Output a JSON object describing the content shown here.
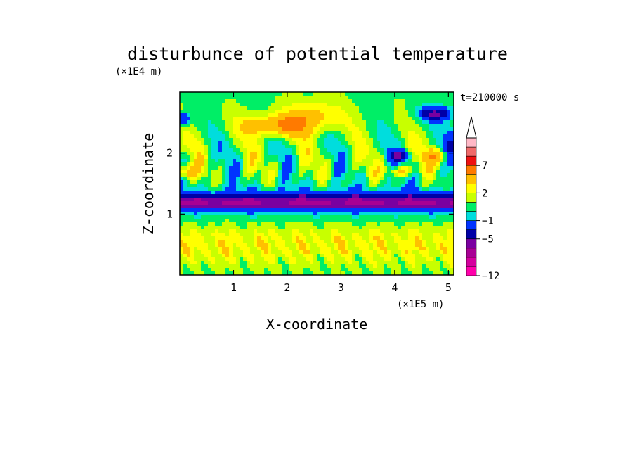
{
  "chart_data": {
    "type": "heatmap",
    "title": "disturbunce of potential temperature",
    "time_label": "t=210000 s",
    "x_axis": {
      "label": "X-coordinate",
      "scale_label": "(×1E5 m)",
      "range": [
        0,
        5.1
      ],
      "ticks": [
        1,
        2,
        3,
        4,
        5
      ],
      "tick_labels": [
        "1",
        "2",
        "3",
        "4",
        "5"
      ]
    },
    "y_axis": {
      "label": "Z-coordinate",
      "scale_label": "(×1E4 m)",
      "range": [
        0,
        3.0
      ],
      "ticks": [
        1,
        2
      ],
      "tick_labels": [
        "1",
        "2"
      ]
    },
    "colorbar": {
      "levels": [
        {
          "value": -12,
          "color": "#ff00aa"
        },
        {
          "value": -11,
          "color": "#d4009e"
        },
        {
          "value": -9,
          "color": "#a80094"
        },
        {
          "value": -7,
          "color": "#7a00a0"
        },
        {
          "value": -5,
          "color": "#0000a6"
        },
        {
          "value": -3,
          "color": "#0033ff"
        },
        {
          "value": -1,
          "color": "#00dddd"
        },
        {
          "value": 0,
          "color": "#00ee66"
        },
        {
          "value": 1,
          "color": "#c8ff00"
        },
        {
          "value": 2,
          "color": "#ffff00"
        },
        {
          "value": 3,
          "color": "#ffc000"
        },
        {
          "value": 5,
          "color": "#ff7a00"
        },
        {
          "value": 7,
          "color": "#ee1111"
        },
        {
          "value": 9,
          "color": "#f06a6a"
        },
        {
          "value": 11,
          "color": "#ffb8c6"
        }
      ],
      "extend_top": true,
      "labels": [
        "7",
        "2",
        "−1",
        "−5",
        "−12"
      ],
      "label_values": [
        7,
        2,
        -1,
        -5,
        -12
      ]
    },
    "field_description_regions": [
      {
        "x_range": [
          0,
          5.1
        ],
        "z_range": [
          1.0,
          1.4
        ],
        "value": -4
      },
      {
        "x_range": [
          0,
          5.1
        ],
        "z_range": [
          0,
          0.9
        ],
        "value": 1.5
      },
      {
        "x_range": [
          1.2,
          2.3
        ],
        "z_range": [
          2.3,
          2.6
        ],
        "value": 4
      },
      {
        "x_range": [
          4.5,
          5.1
        ],
        "z_range": [
          2.5,
          2.8
        ],
        "value": -4
      },
      {
        "x_range": [
          3.9,
          4.3
        ],
        "z_range": [
          1.9,
          2.1
        ],
        "value": -3
      },
      {
        "x_range": [
          0,
          0.3
        ],
        "z_range": [
          1.6,
          1.8
        ],
        "value": 4
      }
    ]
  }
}
